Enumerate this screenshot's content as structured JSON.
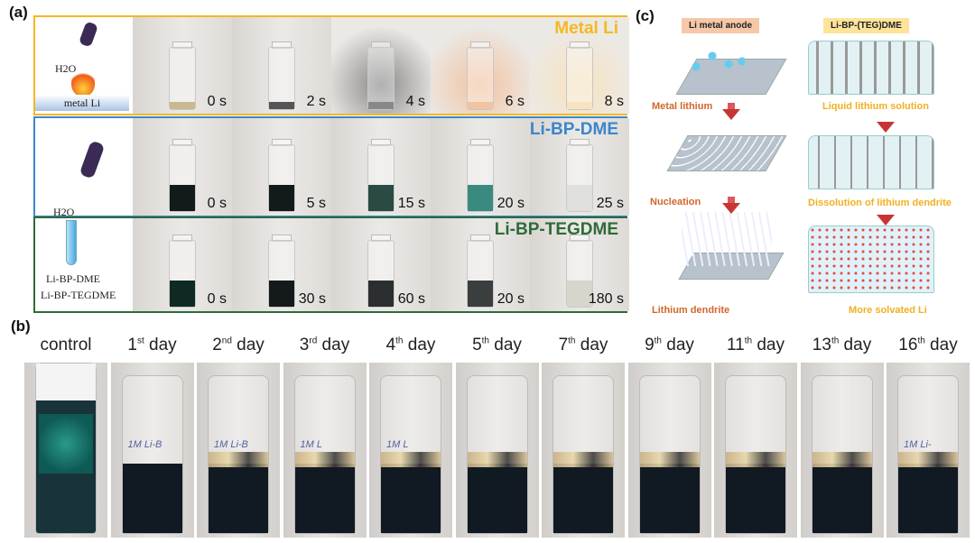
{
  "panel_a": {
    "label": "(a)",
    "rows": [
      {
        "title": "Metal Li",
        "color": "#f5b820",
        "times": [
          "0 s",
          "2 s",
          "4 s",
          "6 s",
          "8 s"
        ],
        "liquid": [
          "#c9b890",
          "#555",
          "#888",
          "#f2c3a0",
          "#f7e3c0"
        ]
      },
      {
        "title": "Li-BP-DME",
        "color": "#3b86cc",
        "times": [
          "0 s",
          "5 s",
          "15 s",
          "20 s",
          "25 s"
        ],
        "liquid": [
          "#121a1a",
          "#121a1a",
          "#2a4a44",
          "#3a8a80",
          "#e0e0dc"
        ]
      },
      {
        "title": "Li-BP-TEGDME",
        "color": "#2f6b3a",
        "times": [
          "0 s",
          "30 s",
          "60 s",
          "20 s",
          "180 s"
        ],
        "liquid": [
          "#0f2a22",
          "#141a1a",
          "#2a2e2e",
          "#3a3e3e",
          "#d8d5cc"
        ]
      }
    ],
    "illus_metal": {
      "water": "H2O",
      "label": "metal Li"
    },
    "illus_solution": {
      "water": "H2O",
      "label1": "Li-BP-DME",
      "label2": "Li-BP-TEGDME"
    }
  },
  "panel_b": {
    "label": "(b)",
    "items": [
      {
        "num": "control",
        "sup": "",
        "day": ""
      },
      {
        "num": "1",
        "sup": "st",
        "day": " day"
      },
      {
        "num": "2",
        "sup": "nd",
        "day": " day"
      },
      {
        "num": "3",
        "sup": "rd",
        "day": " day"
      },
      {
        "num": "4",
        "sup": "th",
        "day": " day"
      },
      {
        "num": "5",
        "sup": "th",
        "day": " day"
      },
      {
        "num": "7",
        "sup": "th",
        "day": " day"
      },
      {
        "num": "9",
        "sup": "th",
        "day": " day"
      },
      {
        "num": "11",
        "sup": "th",
        "day": " day"
      },
      {
        "num": "13",
        "sup": "th",
        "day": " day"
      },
      {
        "num": "16",
        "sup": "th",
        "day": " day"
      }
    ],
    "vial_marks": [
      "",
      "1M Li-B",
      "1M Li-B",
      "1M L",
      "1M L",
      "",
      "",
      "",
      "",
      "",
      "1M Li-"
    ]
  },
  "panel_c": {
    "label": "(c)",
    "left_title": "Li metal anode",
    "right_title": "Li-BP-(TEG)DME",
    "left_steps": [
      "Metal lithium",
      "Nucleation",
      "Lithium dendrite"
    ],
    "right_steps": [
      "Liquid lithium solution",
      "Dissolution of lithium dendrite",
      "More solvated Li"
    ],
    "colors": {
      "left_title_bg": "#f6c8a8",
      "right_title_bg": "#fde49a",
      "left_text": "#d0672a",
      "right_text": "#f0b020",
      "arrow": "#c83434"
    }
  }
}
